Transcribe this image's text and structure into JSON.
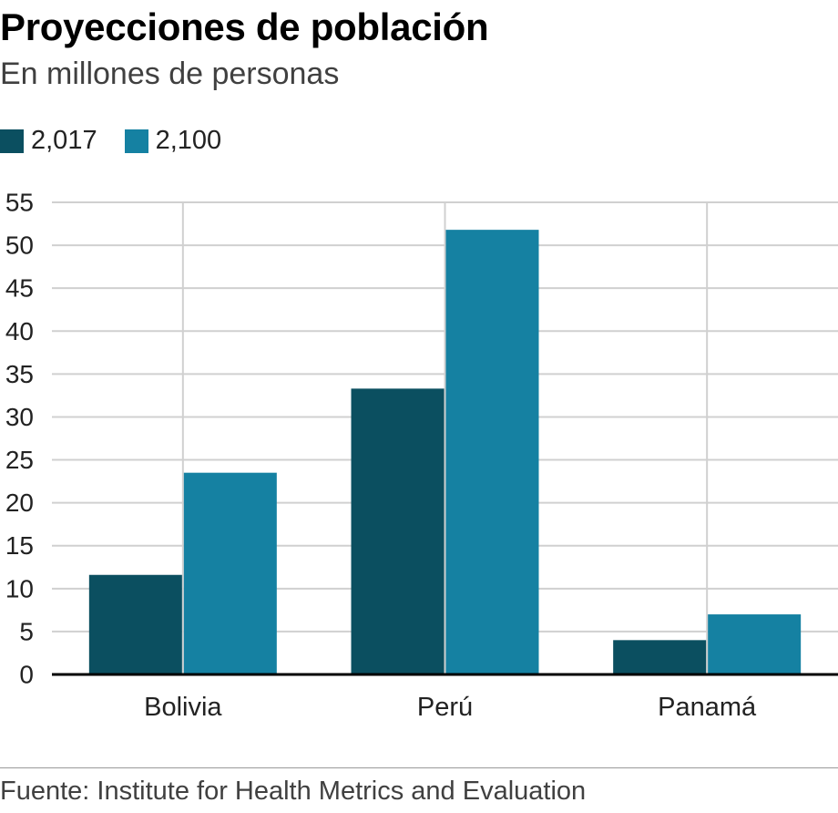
{
  "title": "Proyecciones de población",
  "subtitle": "En millones de personas",
  "source": "Fuente: Institute for Health Metrics and Evaluation",
  "chart_data": {
    "type": "bar",
    "title": "Proyecciones de población",
    "subtitle": "En millones de personas",
    "xlabel": "",
    "ylabel": "",
    "categories": [
      "Bolivia",
      "Perú",
      "Panamá"
    ],
    "series": [
      {
        "name": "2,017",
        "color": "#0b4f60",
        "values": [
          11.6,
          33.3,
          4.0
        ]
      },
      {
        "name": "2,100",
        "color": "#1581a2",
        "values": [
          23.5,
          51.8,
          7.0
        ]
      }
    ],
    "ylim": [
      0,
      55
    ],
    "yticks": [
      0,
      5,
      10,
      15,
      20,
      25,
      30,
      35,
      40,
      45,
      50,
      55
    ],
    "grid": true,
    "legend": "top-left"
  }
}
